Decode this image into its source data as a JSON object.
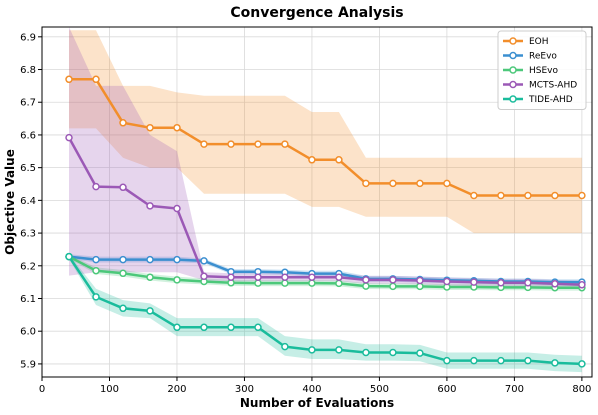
{
  "chart_data": {
    "type": "line",
    "title": "Convergence Analysis",
    "xlabel": "Number of Evaluations",
    "ylabel": "Objective Value",
    "xlim": [
      0,
      815
    ],
    "ylim": [
      5.86,
      6.93
    ],
    "xticks": [
      0,
      100,
      200,
      300,
      400,
      500,
      600,
      700,
      800
    ],
    "yticks": [
      5.9,
      6.0,
      6.1,
      6.2,
      6.3,
      6.4,
      6.5,
      6.6,
      6.7,
      6.8,
      6.9
    ],
    "ytick_labels": [
      "5.9",
      "6.0",
      "6.1",
      "6.2",
      "6.3",
      "6.4",
      "6.5",
      "6.6",
      "6.7",
      "6.8",
      "6.9"
    ],
    "grid": true,
    "legend_position": "top-right",
    "x": [
      40,
      80,
      120,
      160,
      200,
      240,
      280,
      320,
      360,
      400,
      440,
      480,
      520,
      560,
      600,
      640,
      680,
      720,
      760,
      800
    ],
    "series": [
      {
        "name": "EOH",
        "color": "#f28e2b",
        "values": [
          6.77,
          6.77,
          6.637,
          6.622,
          6.622,
          6.572,
          6.572,
          6.572,
          6.572,
          6.524,
          6.524,
          6.452,
          6.452,
          6.452,
          6.452,
          6.415,
          6.415,
          6.415,
          6.415,
          6.415
        ],
        "band_upper": [
          6.92,
          6.92,
          6.75,
          6.75,
          6.73,
          6.72,
          6.72,
          6.72,
          6.72,
          6.67,
          6.67,
          6.53,
          6.53,
          6.53,
          6.53,
          6.53,
          6.53,
          6.53,
          6.53,
          6.53
        ],
        "band_lower": [
          6.62,
          6.62,
          6.53,
          6.5,
          6.5,
          6.42,
          6.42,
          6.42,
          6.42,
          6.38,
          6.38,
          6.35,
          6.35,
          6.35,
          6.35,
          6.3,
          6.3,
          6.3,
          6.3,
          6.3
        ]
      },
      {
        "name": "ReEvo",
        "color": "#3b8fd0",
        "values": [
          6.228,
          6.219,
          6.219,
          6.219,
          6.219,
          6.215,
          6.182,
          6.182,
          6.18,
          6.176,
          6.176,
          6.16,
          6.16,
          6.158,
          6.156,
          6.154,
          6.152,
          6.152,
          6.15,
          6.15
        ],
        "band_upper": [
          6.235,
          6.228,
          6.228,
          6.228,
          6.228,
          6.222,
          6.19,
          6.19,
          6.188,
          6.185,
          6.185,
          6.169,
          6.169,
          6.167,
          6.165,
          6.163,
          6.161,
          6.161,
          6.159,
          6.159
        ],
        "band_lower": [
          6.221,
          6.21,
          6.21,
          6.21,
          6.21,
          6.208,
          6.174,
          6.174,
          6.172,
          6.167,
          6.167,
          6.151,
          6.151,
          6.149,
          6.147,
          6.145,
          6.143,
          6.143,
          6.141,
          6.141
        ]
      },
      {
        "name": "HSEvo",
        "color": "#4cc87a",
        "values": [
          6.228,
          6.185,
          6.177,
          6.165,
          6.157,
          6.152,
          6.148,
          6.147,
          6.147,
          6.147,
          6.146,
          6.138,
          6.137,
          6.137,
          6.135,
          6.135,
          6.134,
          6.134,
          6.133,
          6.133
        ],
        "band_upper": [
          6.235,
          6.195,
          6.187,
          6.175,
          6.167,
          6.161,
          6.157,
          6.156,
          6.156,
          6.156,
          6.155,
          6.147,
          6.146,
          6.146,
          6.144,
          6.144,
          6.143,
          6.143,
          6.142,
          6.142
        ],
        "band_lower": [
          6.221,
          6.175,
          6.167,
          6.155,
          6.147,
          6.143,
          6.139,
          6.138,
          6.138,
          6.138,
          6.137,
          6.129,
          6.128,
          6.128,
          6.126,
          6.126,
          6.125,
          6.125,
          6.124,
          6.124
        ]
      },
      {
        "name": "MCTS-AHD",
        "color": "#9b59b6",
        "values": [
          6.592,
          6.442,
          6.44,
          6.383,
          6.375,
          6.168,
          6.165,
          6.165,
          6.165,
          6.165,
          6.165,
          6.157,
          6.157,
          6.155,
          6.152,
          6.15,
          6.148,
          6.148,
          6.145,
          6.142
        ],
        "band_upper": [
          6.96,
          6.75,
          6.75,
          6.6,
          6.55,
          6.18,
          6.177,
          6.177,
          6.177,
          6.177,
          6.177,
          6.169,
          6.169,
          6.167,
          6.164,
          6.162,
          6.16,
          6.16,
          6.157,
          6.154
        ],
        "band_lower": [
          6.17,
          6.18,
          6.18,
          6.18,
          6.18,
          6.156,
          6.153,
          6.153,
          6.153,
          6.153,
          6.153,
          6.145,
          6.145,
          6.143,
          6.14,
          6.138,
          6.136,
          6.136,
          6.133,
          6.13
        ]
      },
      {
        "name": "TIDE-AHD",
        "color": "#1abc9c",
        "values": [
          6.228,
          6.105,
          6.07,
          6.062,
          6.012,
          6.012,
          6.012,
          6.012,
          5.953,
          5.943,
          5.943,
          5.935,
          5.935,
          5.933,
          5.91,
          5.91,
          5.91,
          5.91,
          5.903,
          5.9
        ],
        "band_upper": [
          6.235,
          6.13,
          6.095,
          6.085,
          6.04,
          6.04,
          6.04,
          6.04,
          5.985,
          5.975,
          5.975,
          5.96,
          5.96,
          5.958,
          5.935,
          5.935,
          5.935,
          5.935,
          5.928,
          5.925
        ],
        "band_lower": [
          6.221,
          6.08,
          6.045,
          6.04,
          5.985,
          5.985,
          5.985,
          5.985,
          5.925,
          5.915,
          5.915,
          5.91,
          5.91,
          5.908,
          5.885,
          5.885,
          5.885,
          5.885,
          5.878,
          5.875
        ]
      }
    ]
  }
}
